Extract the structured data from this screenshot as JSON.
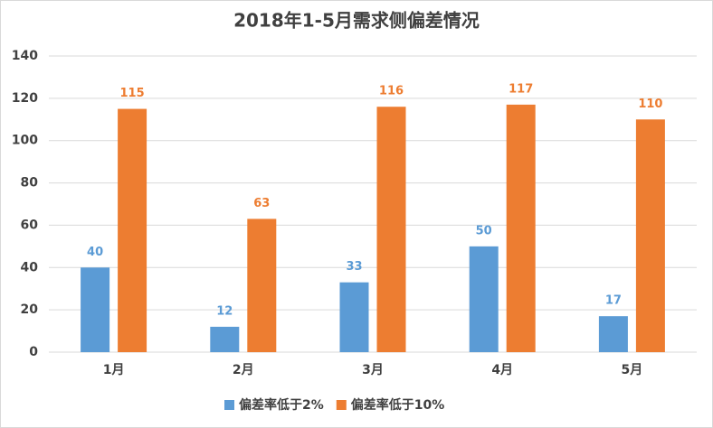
{
  "chart_data": {
    "type": "bar",
    "title": "2018年1-5月需求侧偏差情况",
    "categories": [
      "1月",
      "2月",
      "3月",
      "4月",
      "5月"
    ],
    "series": [
      {
        "name": "偏差率低于2%",
        "color": "#5b9bd5",
        "values": [
          40,
          12,
          33,
          50,
          17
        ]
      },
      {
        "name": "偏差率低于10%",
        "color": "#ed7d31",
        "values": [
          115,
          63,
          116,
          117,
          110
        ]
      }
    ],
    "ylim": [
      0,
      140
    ],
    "yticks": [
      0,
      20,
      40,
      60,
      80,
      100,
      120,
      140
    ],
    "grid": true,
    "legend": "bottom"
  }
}
